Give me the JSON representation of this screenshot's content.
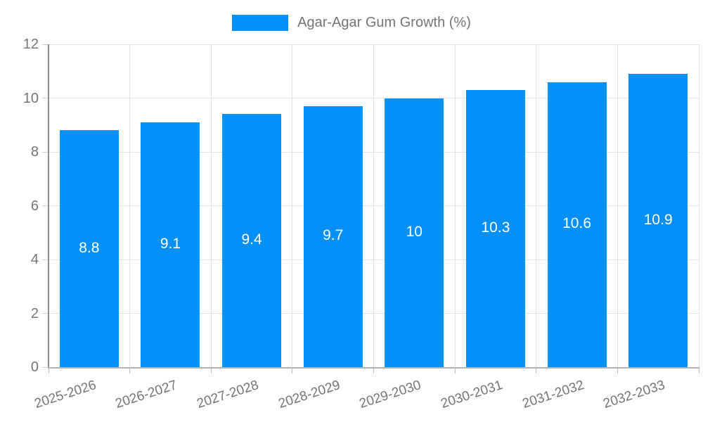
{
  "chart_data": {
    "type": "bar",
    "legend": {
      "label": "Agar-Agar Gum Growth (%)",
      "position": "top"
    },
    "categories": [
      "2025-2026",
      "2026-2027",
      "2027-2028",
      "2028-2029",
      "2029-2030",
      "2030-2031",
      "2031-2032",
      "2032-2033"
    ],
    "values": [
      8.8,
      9.1,
      9.4,
      9.7,
      10,
      10.3,
      10.6,
      10.9
    ],
    "value_labels": [
      "8.8",
      "9.1",
      "9.4",
      "9.7",
      "10",
      "10.3",
      "10.6",
      "10.9"
    ],
    "xlabel": "",
    "ylabel": "",
    "ylim": [
      0,
      12
    ],
    "yticks": [
      0,
      2,
      4,
      6,
      8,
      10,
      12
    ],
    "grid": true,
    "x_label_rotation_deg": -18,
    "colors": {
      "bar": "#0590f8",
      "grid": "#e3e3e3",
      "axis_y": "#8c8c8c",
      "axis_x": "#b3b3b3",
      "text": "#757575",
      "value_label": "#ffffff",
      "background": "#ffffff"
    }
  }
}
